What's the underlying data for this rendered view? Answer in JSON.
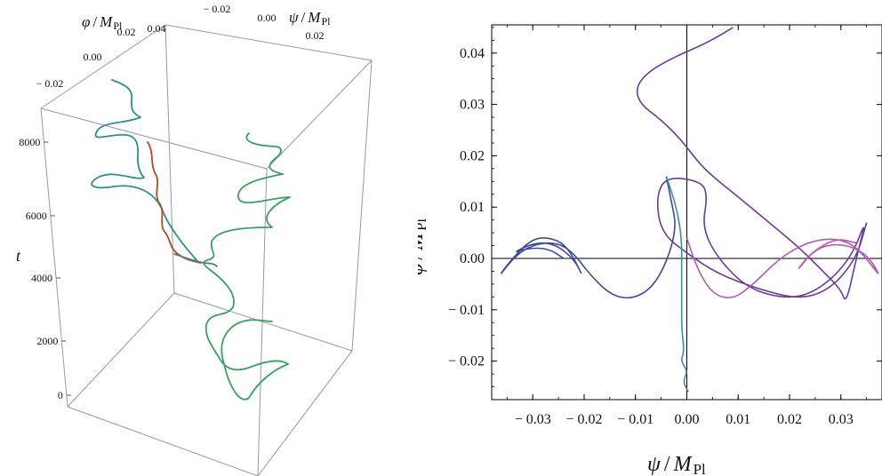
{
  "chart_data": [
    {
      "type": "line",
      "projection": "3d-box",
      "axes": {
        "phi": {
          "label_var": "φ",
          "label_sep": "/",
          "label_unit": "M",
          "label_sub": "Pl",
          "ticks": [
            "0.04",
            "0.02",
            "0.00",
            "− 0.02"
          ],
          "tick_values": [
            0.04,
            0.02,
            0.0,
            -0.02
          ]
        },
        "psi": {
          "label_var": "ψ",
          "label_sep": "/",
          "label_unit": "M",
          "label_sub": "Pl",
          "ticks": [
            "− 0.02",
            "0.00",
            "0.02"
          ],
          "tick_values": [
            -0.02,
            0.0,
            0.02
          ]
        },
        "t": {
          "label": "t",
          "ticks": [
            "0",
            "2000",
            "4000",
            "6000",
            "8000"
          ],
          "tick_values": [
            0,
            2000,
            4000,
            6000,
            8000
          ]
        }
      },
      "series_colors": [
        "#2f8f8f",
        "#3aa062",
        "#b04a2a",
        "#5a7c70"
      ]
    },
    {
      "type": "line",
      "xlabel_var": "ψ",
      "xlabel_sep": "/",
      "xlabel_unit": "M",
      "xlabel_sub": "Pl",
      "ylabel_var": "φ",
      "ylabel_sep": "/",
      "ylabel_unit": "M",
      "ylabel_sub": "Pl",
      "xlim": [
        -0.038,
        0.038
      ],
      "ylim": [
        -0.0275,
        0.0455
      ],
      "xticks": [
        {
          "v": -0.03,
          "label": "− 0.03"
        },
        {
          "v": -0.02,
          "label": "− 0.02"
        },
        {
          "v": -0.01,
          "label": "− 0.01"
        },
        {
          "v": 0.0,
          "label": "0.00"
        },
        {
          "v": 0.01,
          "label": "0.01"
        },
        {
          "v": 0.02,
          "label": "0.02"
        },
        {
          "v": 0.03,
          "label": "0.03"
        }
      ],
      "yticks": [
        {
          "v": 0.04,
          "label": "0.04"
        },
        {
          "v": 0.03,
          "label": "0.03"
        },
        {
          "v": 0.02,
          "label": "0.02"
        },
        {
          "v": 0.01,
          "label": "0.01"
        },
        {
          "v": 0.0,
          "label": "0.00"
        },
        {
          "v": -0.01,
          "label": "− 0.01"
        },
        {
          "v": -0.02,
          "label": "− 0.02"
        }
      ],
      "grid": false,
      "series": [
        {
          "color": "#6a3aa0",
          "points": [
            [
              0.009,
              0.045
            ],
            [
              0.004,
              0.042
            ],
            [
              -0.003,
              0.039
            ],
            [
              -0.008,
              0.036
            ],
            [
              -0.01,
              0.033
            ],
            [
              -0.009,
              0.03
            ],
            [
              -0.005,
              0.027
            ],
            [
              -0.001,
              0.023
            ],
            [
              0.002,
              0.019
            ],
            [
              0.005,
              0.016
            ],
            [
              0.01,
              0.012
            ],
            [
              0.016,
              0.007
            ],
            [
              0.022,
              0.002
            ],
            [
              0.026,
              -0.002
            ],
            [
              0.03,
              -0.006
            ],
            [
              0.031,
              -0.009
            ],
            [
              0.033,
              0.0
            ],
            [
              0.035,
              0.008
            ],
            [
              0.032,
              0.0
            ],
            [
              0.026,
              -0.006
            ],
            [
              0.02,
              -0.008
            ],
            [
              0.012,
              -0.006
            ],
            [
              0.006,
              0.0
            ],
            [
              0.003,
              0.006
            ],
            [
              0.004,
              0.012
            ],
            [
              0.003,
              0.015
            ],
            [
              -0.004,
              0.016
            ],
            [
              -0.006,
              0.012
            ],
            [
              -0.005,
              0.005
            ],
            [
              0.0,
              0.001
            ],
            [
              0.006,
              -0.003
            ],
            [
              0.014,
              -0.006
            ],
            [
              0.022,
              -0.008
            ],
            [
              0.028,
              -0.006
            ],
            [
              0.033,
              0.0
            ],
            [
              0.035,
              0.007
            ]
          ]
        },
        {
          "color": "#b05aba",
          "points": [
            [
              0.0,
              0.004
            ],
            [
              0.002,
              -0.002
            ],
            [
              0.005,
              -0.007
            ],
            [
              0.009,
              -0.008
            ],
            [
              0.013,
              -0.005
            ],
            [
              0.018,
              0.0
            ],
            [
              0.023,
              0.003
            ],
            [
              0.028,
              0.004
            ],
            [
              0.032,
              0.003
            ],
            [
              0.035,
              0.0
            ],
            [
              0.038,
              -0.004
            ],
            [
              0.035,
              0.001
            ],
            [
              0.03,
              0.003
            ],
            [
              0.025,
              0.002
            ],
            [
              0.021,
              -0.003
            ],
            [
              0.024,
              0.001
            ],
            [
              0.029,
              0.004
            ],
            [
              0.033,
              0.003
            ]
          ]
        },
        {
          "color": "#3a4aa0",
          "points": [
            [
              -0.004,
              0.016
            ],
            [
              -0.003,
              0.011
            ],
            [
              -0.002,
              0.006
            ],
            [
              -0.004,
              -0.001
            ],
            [
              -0.007,
              -0.006
            ],
            [
              -0.011,
              -0.008
            ],
            [
              -0.015,
              -0.007
            ],
            [
              -0.019,
              -0.003
            ],
            [
              -0.022,
              0.001
            ],
            [
              -0.025,
              0.003
            ],
            [
              -0.029,
              0.003
            ],
            [
              -0.033,
              0.001
            ],
            [
              -0.037,
              -0.004
            ],
            [
              -0.034,
              0.0
            ],
            [
              -0.03,
              0.004
            ],
            [
              -0.026,
              0.004
            ],
            [
              -0.023,
              0.002
            ],
            [
              -0.02,
              -0.004
            ],
            [
              -0.022,
              0.0
            ],
            [
              -0.026,
              0.003
            ],
            [
              -0.03,
              0.003
            ],
            [
              -0.034,
              0.001
            ],
            [
              -0.031,
              0.002
            ],
            [
              -0.027,
              0.002
            ],
            [
              -0.024,
              0.0
            ]
          ]
        },
        {
          "color": "#3a90a0",
          "points": [
            [
              -0.004,
              0.016
            ],
            [
              -0.002,
              0.01
            ],
            [
              -0.001,
              0.004
            ],
            [
              -0.001,
              -0.002
            ],
            [
              -0.001,
              -0.008
            ],
            [
              -0.001,
              -0.014
            ],
            [
              -0.0005,
              -0.018
            ],
            [
              -0.0012,
              -0.02
            ],
            [
              0.0002,
              -0.022
            ],
            [
              -0.0008,
              -0.024
            ],
            [
              0.0003,
              -0.026
            ]
          ]
        }
      ]
    }
  ]
}
